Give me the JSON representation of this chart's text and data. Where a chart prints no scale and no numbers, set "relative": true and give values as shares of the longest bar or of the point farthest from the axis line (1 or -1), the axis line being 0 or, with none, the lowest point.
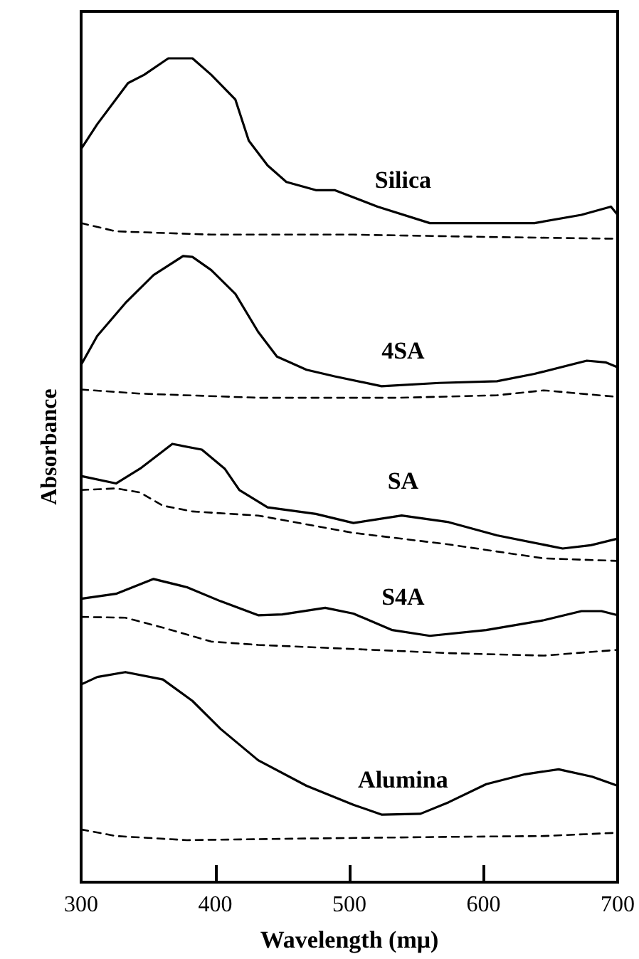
{
  "chart_data": {
    "type": "line",
    "relative": true,
    "xlabel": "Wavelength (mμ)",
    "ylabel": "Absorbance",
    "xlim": [
      300,
      700
    ],
    "xticks": [
      300,
      400,
      500,
      600,
      700
    ],
    "marker": "none",
    "legend": false,
    "series": [
      {
        "name": "Silica",
        "color": "#000000",
        "line_style": "solid",
        "x": [
          300,
          312,
          335,
          347,
          365,
          383,
          397,
          415,
          425,
          439,
          453,
          475,
          489,
          521,
          560,
          599,
          638,
          673,
          695,
          700
        ],
        "values": [
          0.89,
          0.92,
          0.97,
          0.98,
          1.0,
          1.0,
          0.98,
          0.95,
          0.9,
          0.87,
          0.85,
          0.84,
          0.84,
          0.82,
          0.8,
          0.8,
          0.8,
          0.81,
          0.82,
          0.81
        ]
      },
      {
        "color": "#000000",
        "line_style": "dashed",
        "x": [
          300,
          326,
          397,
          503,
          610,
          700
        ],
        "values": [
          0.8,
          0.79,
          0.786,
          0.786,
          0.783,
          0.781
        ]
      },
      {
        "name": "4SA",
        "color": "#000000",
        "line_style": "solid",
        "x": [
          300,
          312,
          333,
          354,
          376,
          383,
          397,
          415,
          432,
          446,
          468,
          489,
          524,
          567,
          610,
          638,
          677,
          691,
          700
        ],
        "values": [
          0.628,
          0.663,
          0.703,
          0.737,
          0.76,
          0.759,
          0.743,
          0.714,
          0.668,
          0.638,
          0.622,
          0.614,
          0.602,
          0.606,
          0.608,
          0.617,
          0.633,
          0.631,
          0.625
        ]
      },
      {
        "color": "#000000",
        "line_style": "dashed",
        "x": [
          300,
          344,
          432,
          538,
          610,
          645,
          700
        ],
        "values": [
          0.598,
          0.593,
          0.588,
          0.588,
          0.591,
          0.597,
          0.589
        ]
      },
      {
        "name": "SA",
        "color": "#000000",
        "line_style": "solid",
        "x": [
          300,
          326,
          344,
          368,
          390,
          407,
          418,
          439,
          475,
          503,
          539,
          574,
          610,
          659,
          680,
          700
        ],
        "values": [
          0.493,
          0.484,
          0.502,
          0.532,
          0.525,
          0.502,
          0.476,
          0.455,
          0.447,
          0.436,
          0.445,
          0.437,
          0.421,
          0.405,
          0.409,
          0.417
        ]
      },
      {
        "color": "#000000",
        "line_style": "dashed",
        "x": [
          300,
          326,
          344,
          361,
          383,
          432,
          503,
          574,
          645,
          700
        ],
        "values": [
          0.476,
          0.478,
          0.473,
          0.457,
          0.45,
          0.445,
          0.424,
          0.41,
          0.393,
          0.39
        ]
      },
      {
        "name": "S4A",
        "color": "#000000",
        "line_style": "solid",
        "x": [
          300,
          326,
          354,
          379,
          404,
          432,
          450,
          482,
          503,
          532,
          560,
          602,
          645,
          673,
          688,
          700
        ],
        "values": [
          0.344,
          0.35,
          0.368,
          0.358,
          0.341,
          0.324,
          0.325,
          0.333,
          0.326,
          0.306,
          0.299,
          0.306,
          0.318,
          0.329,
          0.329,
          0.324
        ]
      },
      {
        "color": "#000000",
        "line_style": "dashed",
        "x": [
          300,
          333,
          361,
          397,
          432,
          503,
          574,
          645,
          700
        ],
        "values": [
          0.322,
          0.321,
          0.309,
          0.292,
          0.288,
          0.283,
          0.278,
          0.275,
          0.282
        ]
      },
      {
        "name": "Alumina",
        "color": "#000000",
        "line_style": "solid",
        "x": [
          300,
          312,
          333,
          361,
          383,
          404,
          432,
          468,
          503,
          524,
          553,
          574,
          602,
          631,
          656,
          681,
          700
        ],
        "values": [
          0.24,
          0.249,
          0.255,
          0.246,
          0.22,
          0.186,
          0.148,
          0.117,
          0.094,
          0.082,
          0.083,
          0.097,
          0.119,
          0.131,
          0.137,
          0.128,
          0.117
        ]
      },
      {
        "color": "#000000",
        "line_style": "dashed",
        "x": [
          300,
          326,
          379,
          468,
          574,
          645,
          700
        ],
        "values": [
          0.064,
          0.056,
          0.051,
          0.053,
          0.055,
          0.056,
          0.06
        ]
      }
    ]
  }
}
